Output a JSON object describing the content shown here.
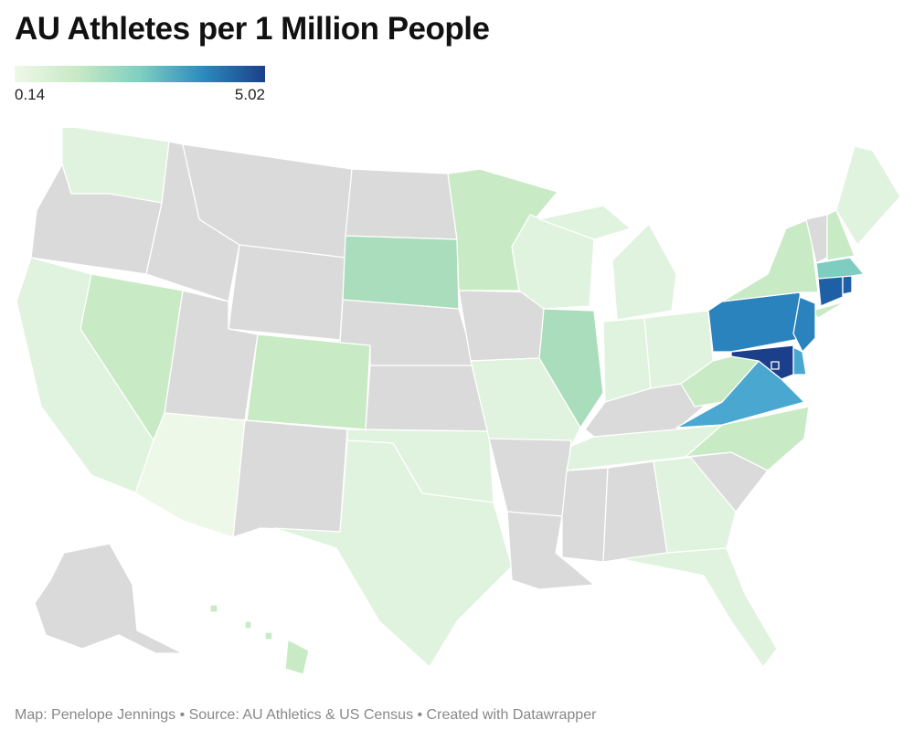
{
  "title": "AU Athletes per 1 Million People",
  "legend": {
    "min_label": "0.14",
    "max_label": "5.02"
  },
  "footer": "Map: Penelope Jennings • Source: AU Athletics & US Census • Created with Datawrapper",
  "colors": {
    "no_data": "#dadada",
    "level_1": "#eef8e8",
    "level_2": "#e0f3de",
    "level_3": "#c8eac4",
    "level_4": "#a9ddbb",
    "level_5": "#7fcdc1",
    "level_6": "#4aa8d0",
    "level_7": "#2b83bd",
    "level_8": "#1f5fa6",
    "level_9": "#1c3f8c"
  },
  "states": [
    {
      "code": "WA",
      "level": "level_2"
    },
    {
      "code": "OR",
      "level": "no_data"
    },
    {
      "code": "CA",
      "level": "level_2"
    },
    {
      "code": "NV",
      "level": "level_3"
    },
    {
      "code": "ID",
      "level": "no_data"
    },
    {
      "code": "MT",
      "level": "no_data"
    },
    {
      "code": "WY",
      "level": "no_data"
    },
    {
      "code": "UT",
      "level": "no_data"
    },
    {
      "code": "AZ",
      "level": "level_1"
    },
    {
      "code": "CO",
      "level": "level_3"
    },
    {
      "code": "NM",
      "level": "no_data"
    },
    {
      "code": "ND",
      "level": "no_data"
    },
    {
      "code": "SD",
      "level": "level_4"
    },
    {
      "code": "NE",
      "level": "no_data"
    },
    {
      "code": "KS",
      "level": "no_data"
    },
    {
      "code": "OK",
      "level": "level_2"
    },
    {
      "code": "TX",
      "level": "level_2"
    },
    {
      "code": "MN",
      "level": "level_3"
    },
    {
      "code": "IA",
      "level": "no_data"
    },
    {
      "code": "MO",
      "level": "level_2"
    },
    {
      "code": "AR",
      "level": "no_data"
    },
    {
      "code": "LA",
      "level": "no_data"
    },
    {
      "code": "WI",
      "level": "level_2"
    },
    {
      "code": "IL",
      "level": "level_4"
    },
    {
      "code": "MI",
      "level": "level_2"
    },
    {
      "code": "IN",
      "level": "level_2"
    },
    {
      "code": "OH",
      "level": "level_2"
    },
    {
      "code": "KY",
      "level": "no_data"
    },
    {
      "code": "TN",
      "level": "level_2"
    },
    {
      "code": "MS",
      "level": "no_data"
    },
    {
      "code": "AL",
      "level": "no_data"
    },
    {
      "code": "GA",
      "level": "level_2"
    },
    {
      "code": "FL",
      "level": "level_2"
    },
    {
      "code": "SC",
      "level": "no_data"
    },
    {
      "code": "NC",
      "level": "level_3"
    },
    {
      "code": "VA",
      "level": "level_6"
    },
    {
      "code": "WV",
      "level": "level_3"
    },
    {
      "code": "PA",
      "level": "level_7"
    },
    {
      "code": "NY",
      "level": "level_3"
    },
    {
      "code": "NJ",
      "level": "level_7"
    },
    {
      "code": "DE",
      "level": "level_6"
    },
    {
      "code": "MD",
      "level": "level_9"
    },
    {
      "code": "DC",
      "level": "level_9"
    },
    {
      "code": "CT",
      "level": "level_8"
    },
    {
      "code": "RI",
      "level": "level_8"
    },
    {
      "code": "MA",
      "level": "level_5"
    },
    {
      "code": "VT",
      "level": "no_data"
    },
    {
      "code": "NH",
      "level": "level_3"
    },
    {
      "code": "ME",
      "level": "level_2"
    },
    {
      "code": "AK",
      "level": "no_data"
    },
    {
      "code": "HI",
      "level": "level_3"
    }
  ]
}
